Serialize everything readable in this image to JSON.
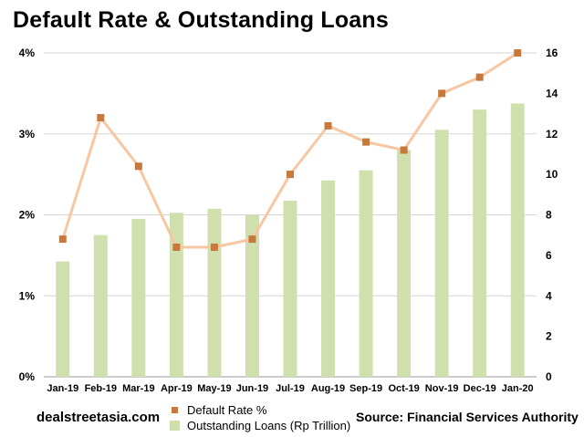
{
  "chart_data": {
    "type": "bar+line",
    "title": "Default Rate & Outstanding Loans",
    "categories": [
      "Jan-19",
      "Feb-19",
      "Mar-19",
      "Apr-19",
      "May-19",
      "Jun-19",
      "Jul-19",
      "Aug-19",
      "Sep-19",
      "Oct-19",
      "Nov-19",
      "Dec-19",
      "Jan-20"
    ],
    "series": [
      {
        "name": "Default Rate %",
        "type": "line",
        "axis": "left",
        "values": [
          1.7,
          3.2,
          2.6,
          1.6,
          1.6,
          1.7,
          2.5,
          3.1,
          2.9,
          2.8,
          3.5,
          3.7,
          4.0
        ],
        "line_color": "#f6c7a2",
        "marker_color": "#c8783a"
      },
      {
        "name": "Outstanding Loans (Rp Trillion)",
        "type": "bar",
        "axis": "right",
        "values": [
          5.7,
          7.0,
          7.8,
          8.1,
          8.3,
          8.0,
          8.7,
          9.7,
          10.2,
          11.2,
          12.2,
          13.2,
          13.5
        ],
        "color": "#cfe0ae"
      }
    ],
    "y_left": {
      "ticks": [
        "0%",
        "1%",
        "2%",
        "3%",
        "4%"
      ],
      "min": 0,
      "max": 4
    },
    "y_right": {
      "ticks": [
        "0",
        "2",
        "4",
        "6",
        "8",
        "10",
        "12",
        "14",
        "16"
      ],
      "min": 0,
      "max": 16
    },
    "grid": true,
    "legend_position": "bottom-center"
  },
  "footer": {
    "source_site": "dealstreetasia.com",
    "source_note": "Source: Financial Services Authority"
  }
}
